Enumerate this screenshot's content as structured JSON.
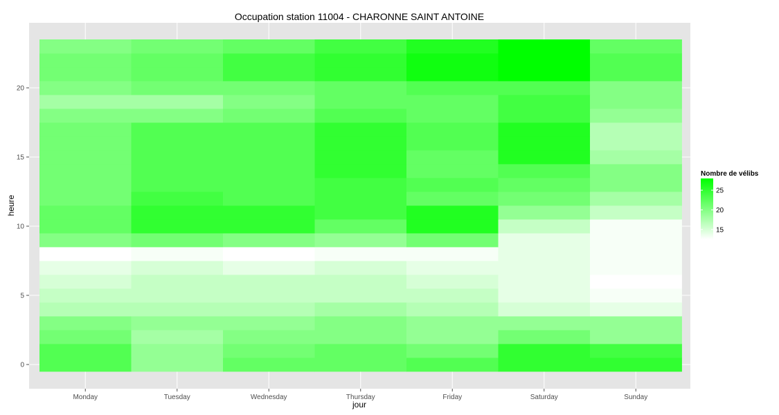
{
  "chart_data": {
    "type": "heatmap",
    "title": "Occupation station 11004 - CHARONNE SAINT ANTOINE",
    "xlabel": "jour",
    "ylabel": "heure",
    "x": [
      "Monday",
      "Tuesday",
      "Wednesday",
      "Thursday",
      "Friday",
      "Saturday",
      "Sunday"
    ],
    "y": [
      0,
      1,
      2,
      3,
      4,
      5,
      6,
      7,
      8,
      9,
      10,
      11,
      12,
      13,
      14,
      15,
      16,
      17,
      18,
      19,
      20,
      21,
      22,
      23
    ],
    "y_ticks": [
      0,
      5,
      10,
      15,
      20
    ],
    "ylim": [
      -0.5,
      23.5
    ],
    "grid": true,
    "legend": {
      "title": "Nombre de vélibs",
      "ticks": [
        15,
        20,
        25
      ],
      "range": [
        12.5,
        28
      ],
      "low_color": "#ffffff",
      "high_color": "#00ff00",
      "position": "right"
    },
    "values": [
      [
        23,
        19,
        22,
        22,
        23,
        25,
        25
      ],
      [
        23,
        19,
        21,
        22,
        21,
        25,
        24
      ],
      [
        21,
        18,
        20,
        20,
        19,
        21,
        19
      ],
      [
        20,
        19,
        19,
        20,
        19,
        19,
        19
      ],
      [
        17,
        17,
        17,
        18,
        17,
        15,
        14
      ],
      [
        16,
        16,
        16,
        16,
        16,
        14,
        13
      ],
      [
        15,
        16,
        16,
        16,
        15,
        14,
        12
      ],
      [
        14,
        15,
        14,
        15,
        14,
        14,
        13
      ],
      [
        12,
        13,
        12,
        13,
        13,
        14,
        13
      ],
      [
        20,
        21,
        20,
        19,
        21,
        14,
        13
      ],
      [
        22,
        25,
        25,
        22,
        26,
        16,
        13
      ],
      [
        22,
        25,
        25,
        24,
        26,
        19,
        16
      ],
      [
        21,
        24,
        23,
        24,
        22,
        21,
        18
      ],
      [
        21,
        23,
        23,
        24,
        23,
        22,
        20
      ],
      [
        21,
        23,
        23,
        25,
        22,
        23,
        20
      ],
      [
        21,
        23,
        23,
        25,
        22,
        26,
        18
      ],
      [
        21,
        23,
        23,
        25,
        23,
        26,
        17
      ],
      [
        21,
        23,
        23,
        25,
        23,
        26,
        17
      ],
      [
        20,
        20,
        21,
        23,
        22,
        24,
        19
      ],
      [
        18,
        18,
        20,
        22,
        22,
        24,
        20
      ],
      [
        20,
        21,
        21,
        22,
        23,
        23,
        20
      ],
      [
        21,
        22,
        24,
        25,
        27,
        28,
        23
      ],
      [
        21,
        22,
        24,
        25,
        27,
        28,
        23
      ],
      [
        20,
        21,
        22,
        24,
        26,
        29,
        22
      ]
    ]
  }
}
